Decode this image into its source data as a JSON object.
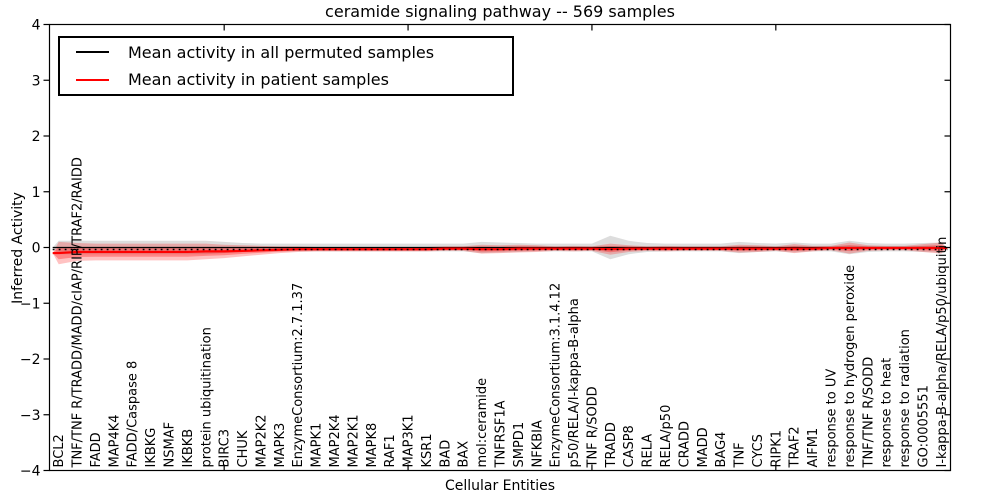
{
  "title": "ceramide signaling pathway -- 569 samples",
  "axes": {
    "xlabel": "Cellular Entities",
    "ylabel": "Inferred Activity"
  },
  "legend": {
    "items": [
      {
        "label": "Mean activity in all permuted samples",
        "color": "#000000"
      },
      {
        "label": "Mean activity in patient samples",
        "color": "#ff0000"
      }
    ]
  },
  "chart_data": {
    "type": "line",
    "title": "ceramide signaling pathway -- 569 samples",
    "xlabel": "Cellular Entities",
    "ylabel": "Inferred Activity",
    "ylim": [
      -4,
      4
    ],
    "yticks": [
      -4,
      -3,
      -2,
      -1,
      0,
      1,
      2,
      3,
      4
    ],
    "xticks": [
      10,
      20,
      30,
      40
    ],
    "grid": false,
    "legend_position": "upper left",
    "categories": [
      "BCL2",
      "TNF/TNF R/TRADD/MADD/cIAP/RIP/TRAF2/RAIDD",
      "FADD",
      "MAP4K4",
      "FADD/Caspase 8",
      "IKBKG",
      "NSMAF",
      "IKBKB",
      "protein ubiquitination",
      "BIRC3",
      "CHUK",
      "MAP2K2",
      "MAPK3",
      "EnzymeConsortium:2.7.1.37",
      "MAPK1",
      "MAP2K4",
      "MAP2K1",
      "MAPK8",
      "RAF1",
      "MAP3K1",
      "KSR1",
      "BAD",
      "BAX",
      "mol:ceramide",
      "TNFRSF1A",
      "SMPD1",
      "NFKBIA",
      "EnzymeConsortium:3.1.4.12",
      "p50/RELA/I-kappa-B-alpha",
      "TNF R/SODD",
      "TRADD",
      "CASP8",
      "RELA",
      "RELA/p50",
      "CRADD",
      "MADD",
      "BAG4",
      "TNF",
      "CYCS",
      "RIPK1",
      "TRAF2",
      "AIFM1",
      "response to UV",
      "response to hydrogen peroxide",
      "TNF/TNF R/SODD",
      "response to heat",
      "response to radiation",
      "GO:0005551",
      "I-kappa-B-alpha/RELA/p50/ubiquitin"
    ],
    "series": [
      {
        "name": "Mean activity in all permuted samples",
        "color": "#000000",
        "style": "solid+dotted-zero-line",
        "values": [
          0,
          0,
          0,
          0,
          0,
          0,
          0,
          0,
          0,
          0,
          0,
          0,
          0,
          0,
          0,
          0,
          0,
          0,
          0,
          0,
          0,
          0,
          0,
          0,
          0,
          0,
          0,
          0,
          0,
          0,
          0,
          0,
          0,
          0,
          0,
          0,
          0,
          0,
          0,
          0,
          0,
          0,
          0,
          0,
          0,
          0,
          0,
          0,
          0
        ]
      },
      {
        "name": "Mean activity in patient samples",
        "color": "#ff0000",
        "style": "solid",
        "values": [
          -0.1,
          -0.08,
          -0.08,
          -0.08,
          -0.08,
          -0.08,
          -0.08,
          -0.08,
          -0.07,
          -0.07,
          -0.06,
          -0.05,
          -0.04,
          -0.03,
          -0.03,
          -0.03,
          -0.03,
          -0.03,
          -0.03,
          -0.03,
          -0.03,
          -0.02,
          -0.02,
          -0.03,
          -0.03,
          -0.02,
          -0.02,
          -0.02,
          -0.02,
          -0.02,
          -0.03,
          -0.02,
          -0.02,
          -0.02,
          -0.02,
          -0.02,
          -0.02,
          -0.02,
          -0.02,
          -0.02,
          -0.02,
          -0.02,
          -0.01,
          -0.01,
          -0.01,
          -0.01,
          -0.01,
          -0.01,
          -0.01
        ]
      }
    ],
    "bands": [
      {
        "name": "permuted-samples-spread",
        "color": "#aaaaaa",
        "opacity": 0.4,
        "center": "zero",
        "half_widths": [
          0.12,
          0.12,
          0.12,
          0.12,
          0.12,
          0.12,
          0.12,
          0.12,
          0.12,
          0.1,
          0.08,
          0.07,
          0.07,
          0.07,
          0.07,
          0.07,
          0.07,
          0.07,
          0.07,
          0.07,
          0.07,
          0.07,
          0.07,
          0.1,
          0.09,
          0.08,
          0.07,
          0.07,
          0.07,
          0.07,
          0.21,
          0.12,
          0.08,
          0.07,
          0.07,
          0.07,
          0.07,
          0.1,
          0.08,
          0.07,
          0.09,
          0.07,
          0.07,
          0.12,
          0.08,
          0.07,
          0.07,
          0.08,
          0.09
        ]
      },
      {
        "name": "patient-samples-spread-outer",
        "color": "#ff0000",
        "opacity": 0.24,
        "center": "patient",
        "half_widths": [
          0.2,
          0.16,
          0.15,
          0.15,
          0.15,
          0.15,
          0.15,
          0.15,
          0.14,
          0.12,
          0.1,
          0.08,
          0.06,
          0.05,
          0.04,
          0.04,
          0.04,
          0.04,
          0.04,
          0.04,
          0.04,
          0.04,
          0.04,
          0.08,
          0.07,
          0.07,
          0.06,
          0.04,
          0.05,
          0.04,
          0.1,
          0.06,
          0.04,
          0.05,
          0.04,
          0.04,
          0.04,
          0.07,
          0.06,
          0.04,
          0.08,
          0.05,
          0.04,
          0.1,
          0.05,
          0.04,
          0.04,
          0.07,
          0.1
        ]
      },
      {
        "name": "patient-samples-spread-inner",
        "color": "#ff0000",
        "opacity": 0.3,
        "center": "patient",
        "half_widths": [
          0.11,
          0.09,
          0.085,
          0.085,
          0.085,
          0.085,
          0.085,
          0.085,
          0.08,
          0.07,
          0.055,
          0.045,
          0.035,
          0.03,
          0.025,
          0.025,
          0.025,
          0.025,
          0.025,
          0.025,
          0.025,
          0.025,
          0.025,
          0.045,
          0.04,
          0.04,
          0.035,
          0.025,
          0.03,
          0.025,
          0.055,
          0.035,
          0.025,
          0.03,
          0.025,
          0.025,
          0.025,
          0.04,
          0.035,
          0.025,
          0.045,
          0.03,
          0.025,
          0.055,
          0.03,
          0.025,
          0.025,
          0.04,
          0.055
        ]
      }
    ]
  }
}
